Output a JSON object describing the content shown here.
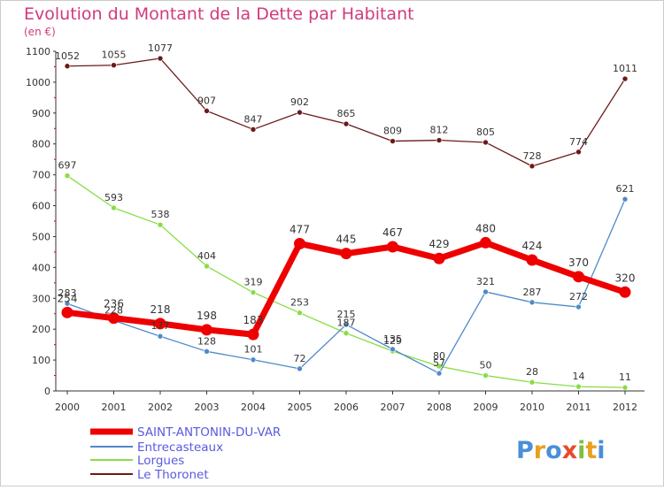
{
  "chart_data": {
    "type": "line",
    "title": "Evolution du Montant de la Dette par Habitant",
    "unit_label": "(en €)",
    "x": [
      "2000",
      "2001",
      "2002",
      "2003",
      "2004",
      "2005",
      "2006",
      "2007",
      "2008",
      "2009",
      "2010",
      "2011",
      "2012"
    ],
    "ylim": [
      0,
      1100
    ],
    "y_ticks": [
      0,
      100,
      200,
      300,
      400,
      500,
      600,
      700,
      800,
      900,
      1000,
      1100
    ],
    "grid": false,
    "legend_position": "bottom-left",
    "series": [
      {
        "name": "SAINT-ANTONIN-DU-VAR",
        "color": "#ee0000",
        "values": [
          254,
          236,
          218,
          198,
          183,
          477,
          445,
          467,
          429,
          480,
          424,
          370,
          320
        ]
      },
      {
        "name": "Entrecasteaux",
        "color": "#4f8ac8",
        "values": [
          283,
          228,
          177,
          128,
          101,
          72,
          215,
          135,
          57,
          321,
          287,
          272,
          621
        ]
      },
      {
        "name": "Lorgues",
        "color": "#88dd44",
        "values": [
          697,
          593,
          538,
          404,
          319,
          253,
          187,
          129,
          80,
          50,
          28,
          14,
          11
        ]
      },
      {
        "name": "Le Thoronet",
        "color": "#6b1a1a",
        "values": [
          1052,
          1055,
          1077,
          907,
          847,
          902,
          865,
          809,
          812,
          805,
          728,
          774,
          1011
        ]
      }
    ]
  },
  "brand": {
    "logo_text": "Proxiti"
  },
  "colors": {
    "title": "#d23a7c",
    "axis": "#333333",
    "tick_marks": "#cc0000",
    "value_label": "#333333"
  }
}
